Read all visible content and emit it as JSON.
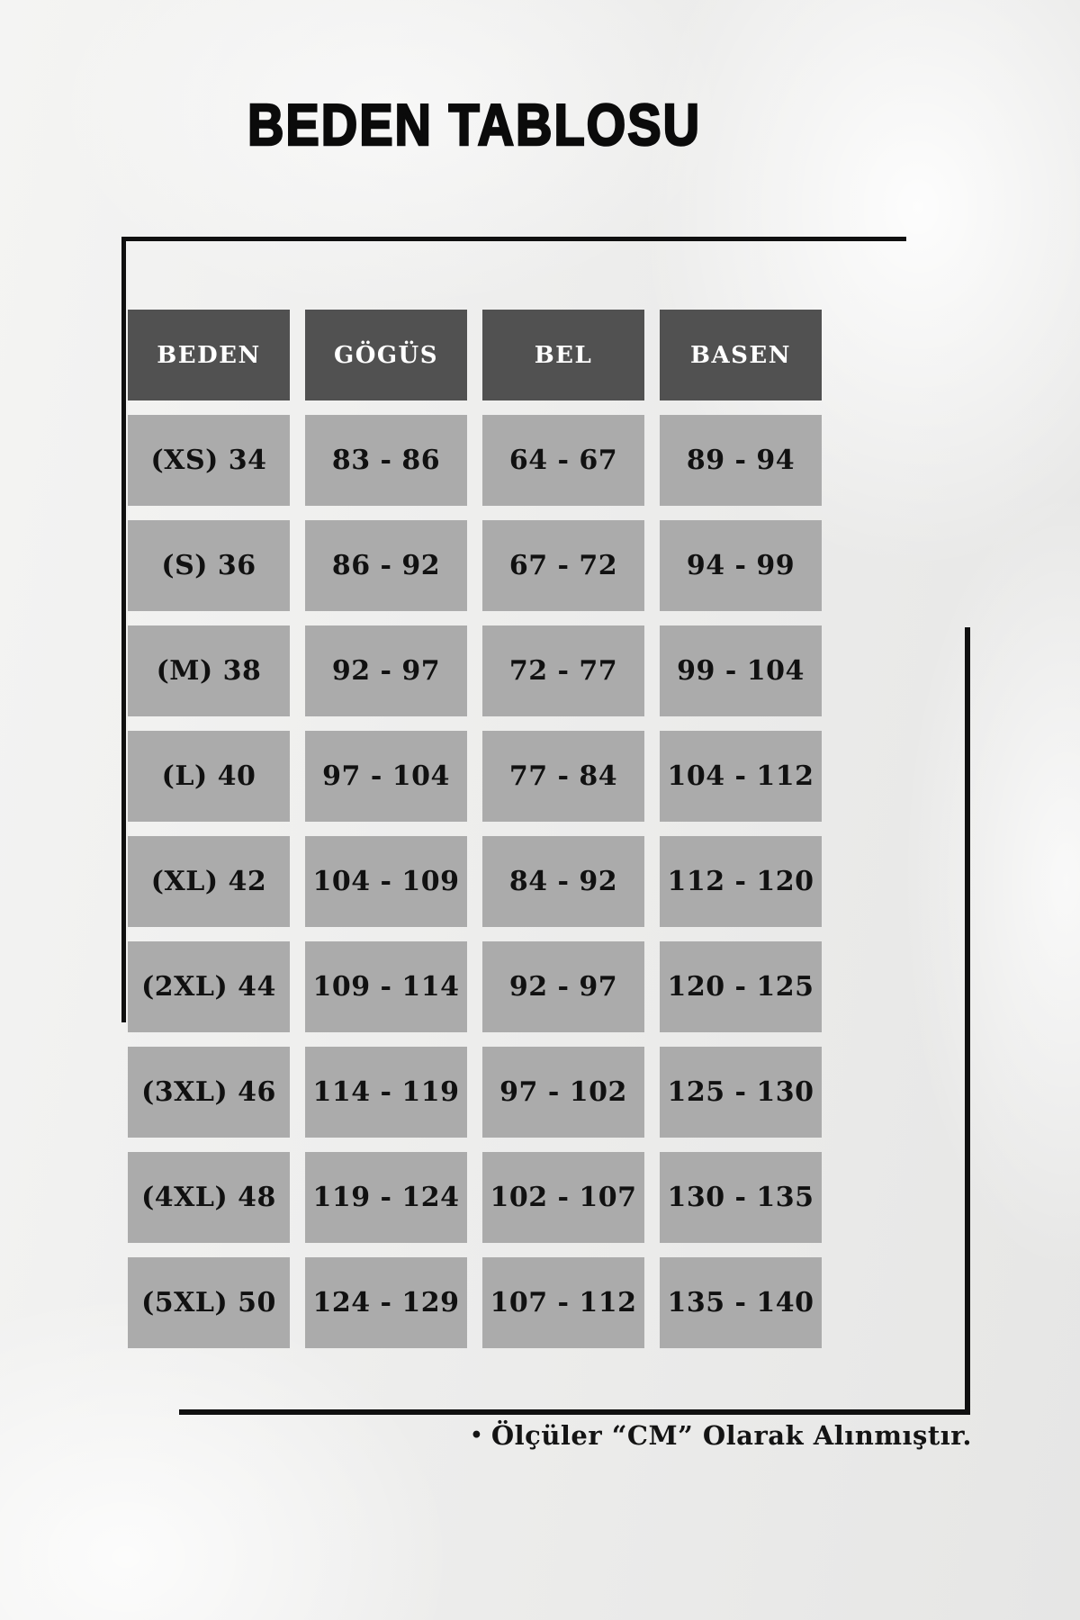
{
  "title": "BEDEN TABLOSU",
  "chart_data": {
    "type": "table",
    "title": "BEDEN TABLOSU",
    "columns": [
      "BEDEN",
      "GÖGÜS",
      "BEL",
      "BASEN"
    ],
    "rows": [
      [
        "(XS) 34",
        "83 - 86",
        "64 - 67",
        "89 - 94"
      ],
      [
        "(S) 36",
        "86 - 92",
        "67 - 72",
        "94 - 99"
      ],
      [
        "(M) 38",
        "92 - 97",
        "72 - 77",
        "99 - 104"
      ],
      [
        "(L) 40",
        "97 - 104",
        "77 - 84",
        "104 - 112"
      ],
      [
        "(XL) 42",
        "104 - 109",
        "84 - 92",
        "112 - 120"
      ],
      [
        "(2XL) 44",
        "109 - 114",
        "92 - 97",
        "120 - 125"
      ],
      [
        "(3XL) 46",
        "114 - 119",
        "97 - 102",
        "125 - 130"
      ],
      [
        "(4XL) 48",
        "119 - 124",
        "102 - 107",
        "130 - 135"
      ],
      [
        "(5XL) 50",
        "124 - 129",
        "107 - 112",
        "135 - 140"
      ]
    ],
    "footnote_bullet": "•",
    "footnote": "Ölçüler “CM” Olarak Alınmıştır."
  },
  "colors": {
    "header_bg": "#515151",
    "header_text": "#ffffff",
    "cell_bg": "#ababab",
    "cell_text": "#111111",
    "frame_line": "#101010",
    "background": "#ededec"
  }
}
